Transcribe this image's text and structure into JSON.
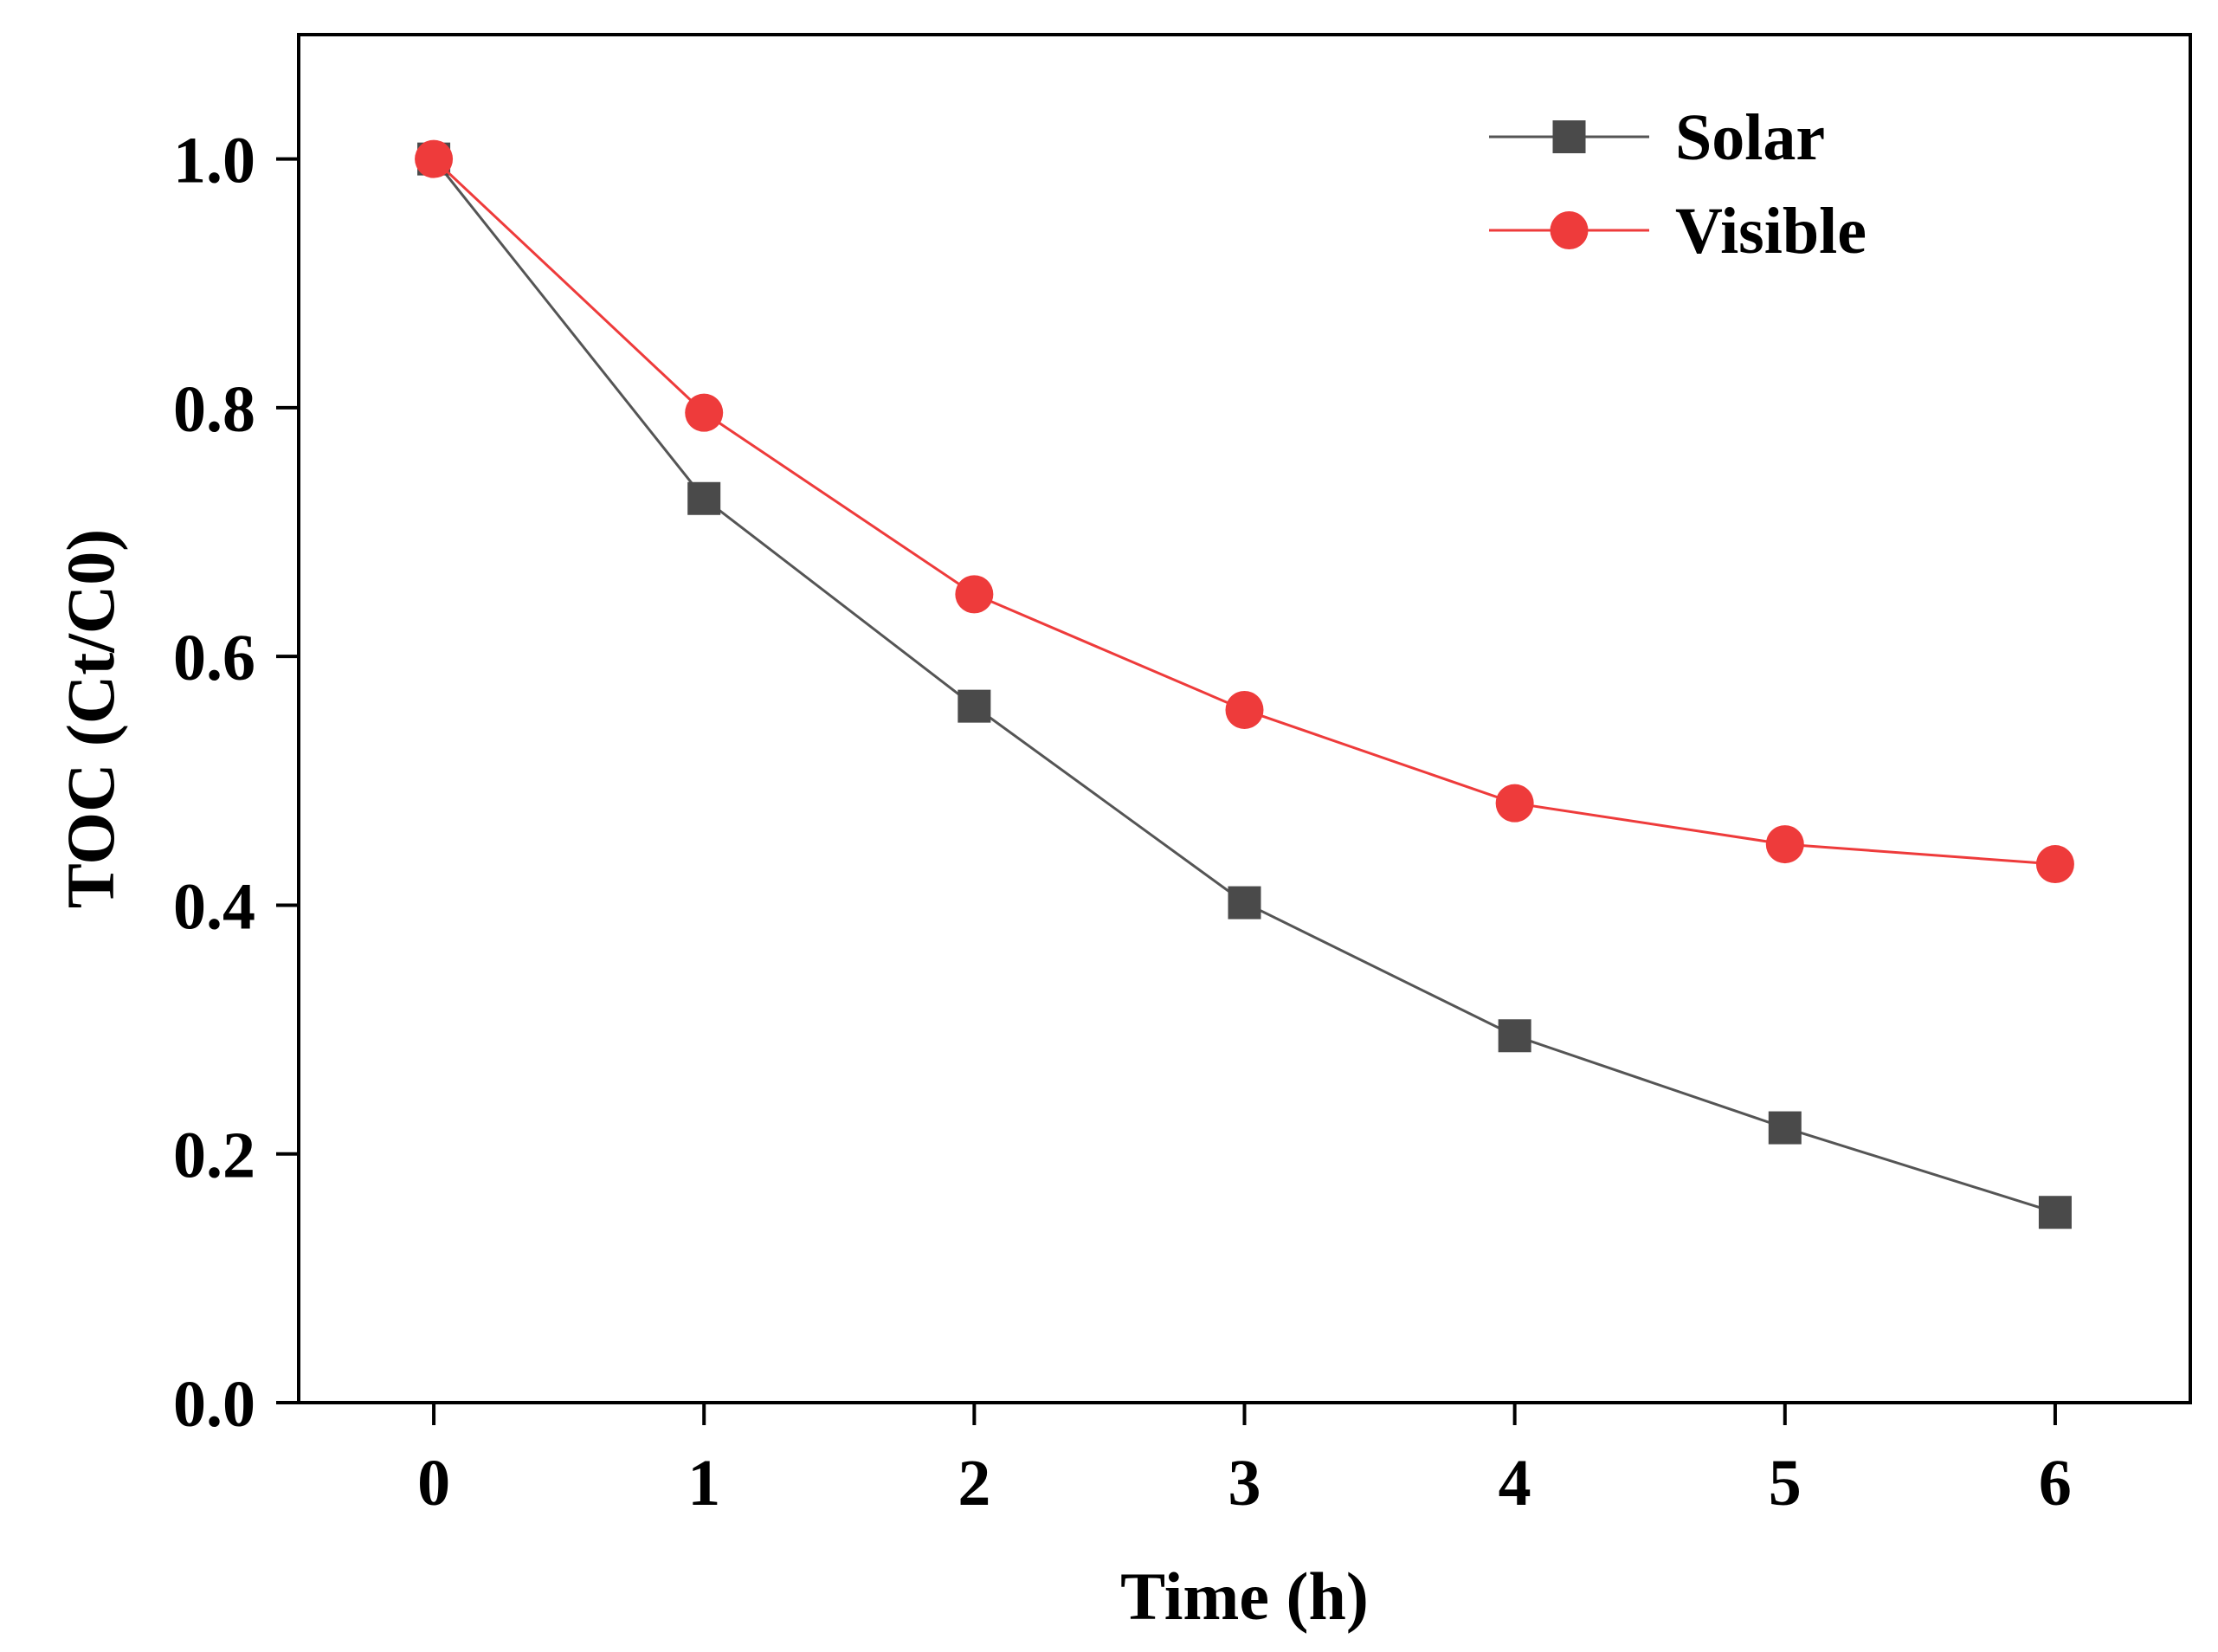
{
  "chart_data": {
    "type": "line",
    "title": "",
    "xlabel": "Time (h)",
    "ylabel": "TOC (Ct/C0)",
    "x": [
      0,
      1,
      2,
      3,
      4,
      5,
      6
    ],
    "xlim": [
      -0.5,
      6.5
    ],
    "ylim": [
      0,
      1.1
    ],
    "xticks": [
      "0",
      "1",
      "2",
      "3",
      "4",
      "5",
      "6"
    ],
    "yticks": [
      "0.0",
      "0.2",
      "0.4",
      "0.6",
      "0.8",
      "1.0"
    ],
    "grid": false,
    "legend_position": "top-right",
    "series": [
      {
        "name": "Solar",
        "marker": "square",
        "color": "#4a4a4a",
        "line_color": "#555555",
        "values": [
          1.0,
          0.727,
          0.56,
          0.402,
          0.295,
          0.221,
          0.153
        ]
      },
      {
        "name": "Visible",
        "marker": "circle",
        "color": "#ee3b3b",
        "line_color": "#ee3b3b",
        "values": [
          1.0,
          0.796,
          0.65,
          0.557,
          0.482,
          0.449,
          0.433
        ]
      }
    ]
  }
}
